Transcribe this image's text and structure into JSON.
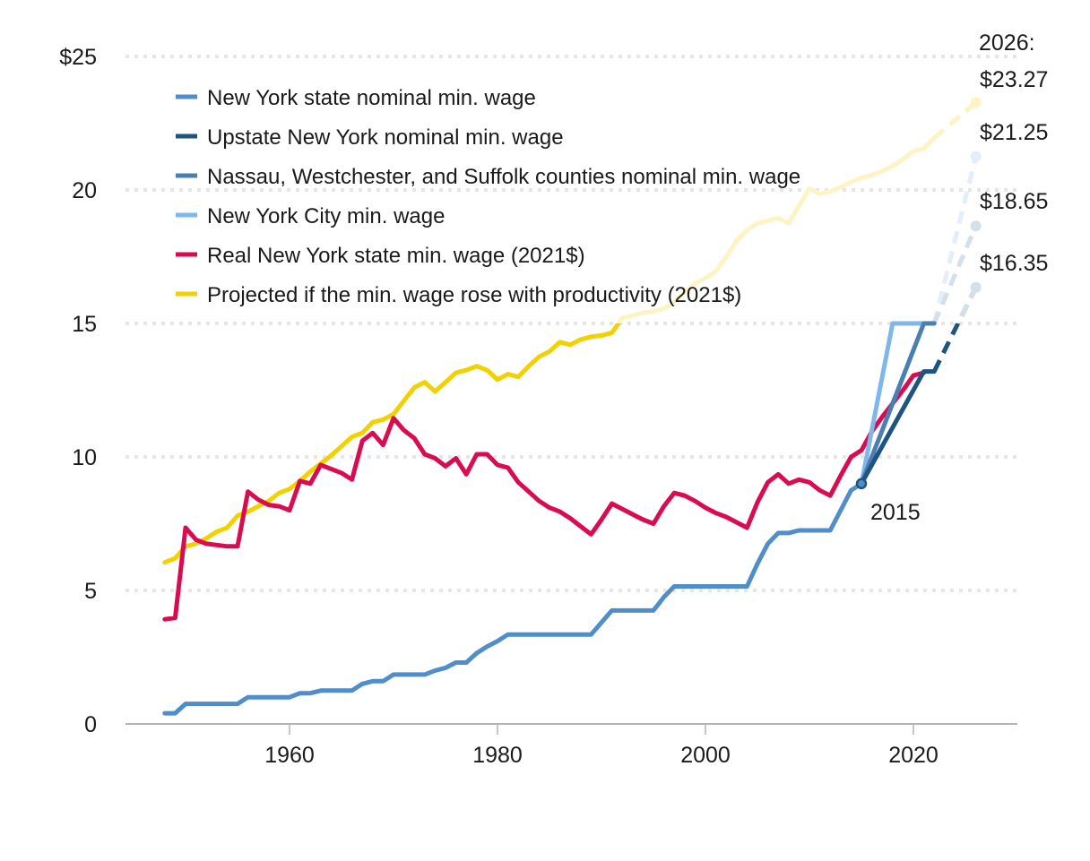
{
  "chart_data": {
    "type": "line",
    "title": "",
    "xlabel": "",
    "ylabel": "",
    "xlim": [
      1945,
      2030
    ],
    "ylim": [
      0,
      25
    ],
    "grid": true,
    "legend_position": "top-left",
    "x_ticks": [
      1960,
      1980,
      2000,
      2020
    ],
    "x_tick_labels": [
      "1960",
      "1980",
      "2000",
      "2020"
    ],
    "y_ticks": [
      0,
      5,
      10,
      15,
      20,
      25
    ],
    "y_tick_labels": [
      "0",
      "5",
      "10",
      "15",
      "20",
      "$25"
    ],
    "series": [
      {
        "name": "New York state nominal min. wage",
        "color": "#4f8ec9",
        "x": [
          1948,
          1949,
          1950,
          1951,
          1952,
          1953,
          1954,
          1955,
          1956,
          1957,
          1958,
          1959,
          1960,
          1961,
          1962,
          1963,
          1964,
          1965,
          1966,
          1967,
          1968,
          1969,
          1970,
          1971,
          1972,
          1973,
          1974,
          1975,
          1976,
          1977,
          1978,
          1979,
          1980,
          1981,
          1982,
          1983,
          1984,
          1985,
          1986,
          1987,
          1988,
          1989,
          1990,
          1991,
          1992,
          1993,
          1994,
          1995,
          1996,
          1997,
          1998,
          1999,
          2000,
          2001,
          2002,
          2003,
          2004,
          2005,
          2006,
          2007,
          2008,
          2009,
          2010,
          2011,
          2012,
          2013,
          2014,
          2015
        ],
        "values": [
          0.4,
          0.4,
          0.75,
          0.75,
          0.75,
          0.75,
          0.75,
          0.75,
          1.0,
          1.0,
          1.0,
          1.0,
          1.0,
          1.15,
          1.15,
          1.25,
          1.25,
          1.25,
          1.25,
          1.5,
          1.6,
          1.6,
          1.85,
          1.85,
          1.85,
          1.85,
          2.0,
          2.1,
          2.3,
          2.3,
          2.65,
          2.9,
          3.1,
          3.35,
          3.35,
          3.35,
          3.35,
          3.35,
          3.35,
          3.35,
          3.35,
          3.35,
          3.8,
          4.25,
          4.25,
          4.25,
          4.25,
          4.25,
          4.75,
          5.15,
          5.15,
          5.15,
          5.15,
          5.15,
          5.15,
          5.15,
          5.15,
          6.0,
          6.75,
          7.15,
          7.15,
          7.25,
          7.25,
          7.25,
          7.25,
          8.0,
          8.75,
          9.0
        ]
      },
      {
        "name": "Upstate New York nominal min. wage",
        "color": "#1e5480",
        "x": [
          2015,
          2021,
          2022
        ],
        "values": [
          9.0,
          13.2,
          13.2
        ],
        "projection": {
          "x": [
            2022,
            2026
          ],
          "values": [
            13.2,
            16.35
          ]
        }
      },
      {
        "name": "Nassau, Westchester, and Suffolk counties nominal min. wage",
        "color": "#4a7fb0",
        "x": [
          2015,
          2021,
          2022
        ],
        "values": [
          9.0,
          15.0,
          15.0
        ],
        "projection": {
          "x": [
            2022,
            2026
          ],
          "values": [
            15.0,
            18.65
          ]
        }
      },
      {
        "name": "New York City min. wage",
        "color": "#7fb7ea",
        "x": [
          2015,
          2018,
          2022
        ],
        "values": [
          9.0,
          15.0,
          15.0
        ],
        "projection": {
          "x": [
            2022,
            2026
          ],
          "values": [
            15.0,
            21.25
          ]
        }
      },
      {
        "name": "Real New York state min. wage (2021$)",
        "color": "#d90c52",
        "x": [
          1948,
          1949,
          1950,
          1951,
          1952,
          1953,
          1954,
          1955,
          1956,
          1957,
          1958,
          1959,
          1960,
          1961,
          1962,
          1963,
          1964,
          1965,
          1966,
          1967,
          1968,
          1969,
          1970,
          1971,
          1972,
          1973,
          1974,
          1975,
          1976,
          1977,
          1978,
          1979,
          1980,
          1981,
          1982,
          1983,
          1984,
          1985,
          1986,
          1987,
          1988,
          1989,
          1990,
          1991,
          1992,
          1993,
          1994,
          1995,
          1996,
          1997,
          1998,
          1999,
          2000,
          2001,
          2002,
          2003,
          2004,
          2005,
          2006,
          2007,
          2008,
          2009,
          2010,
          2011,
          2012,
          2013,
          2014,
          2015,
          2016,
          2017,
          2018,
          2019,
          2020,
          2021
        ],
        "values": [
          3.92,
          3.97,
          7.35,
          6.9,
          6.75,
          6.7,
          6.65,
          6.65,
          8.7,
          8.4,
          8.2,
          8.15,
          8.0,
          9.1,
          9.0,
          9.7,
          9.55,
          9.4,
          9.15,
          10.6,
          10.9,
          10.45,
          11.45,
          11.0,
          10.7,
          10.1,
          9.95,
          9.65,
          9.95,
          9.35,
          10.1,
          10.1,
          9.7,
          9.6,
          9.05,
          8.7,
          8.35,
          8.1,
          7.95,
          7.7,
          7.4,
          7.1,
          7.65,
          8.25,
          8.05,
          7.85,
          7.65,
          7.5,
          8.15,
          8.65,
          8.55,
          8.35,
          8.1,
          7.9,
          7.75,
          7.55,
          7.35,
          8.3,
          9.05,
          9.35,
          9.0,
          9.15,
          9.05,
          8.75,
          8.55,
          9.3,
          10.0,
          10.25,
          10.95,
          11.5,
          12.0,
          12.5,
          13.05,
          13.15
        ]
      },
      {
        "name": "Projected if the min. wage rose with productivity (2021$)",
        "color": "#f2d100",
        "x": [
          1948,
          1949,
          1950,
          1951,
          1952,
          1953,
          1954,
          1955,
          1956,
          1957,
          1958,
          1959,
          1960,
          1961,
          1962,
          1963,
          1964,
          1965,
          1966,
          1967,
          1968,
          1969,
          1970,
          1971,
          1972,
          1973,
          1974,
          1975,
          1976,
          1977,
          1978,
          1979,
          1980,
          1981,
          1982,
          1983,
          1984,
          1985,
          1986,
          1987,
          1988,
          1989,
          1990,
          1991,
          1992,
          1993,
          1994,
          1995,
          1996,
          1997,
          1998,
          1999,
          2000,
          2001,
          2002,
          2003,
          2004,
          2005,
          2006,
          2007,
          2008,
          2009,
          2010,
          2011,
          2012,
          2013,
          2014,
          2015,
          2016,
          2017,
          2018,
          2019,
          2020,
          2021,
          2022
        ],
        "values": [
          6.05,
          6.2,
          6.65,
          6.75,
          6.95,
          7.2,
          7.35,
          7.8,
          7.95,
          8.15,
          8.35,
          8.65,
          8.8,
          9.1,
          9.45,
          9.75,
          10.05,
          10.4,
          10.75,
          10.9,
          11.3,
          11.4,
          11.6,
          12.1,
          12.6,
          12.8,
          12.45,
          12.8,
          13.15,
          13.25,
          13.4,
          13.25,
          12.9,
          13.1,
          13.0,
          13.4,
          13.75,
          13.95,
          14.3,
          14.2,
          14.4,
          14.5,
          14.55,
          14.65,
          15.2,
          15.3,
          15.4,
          15.45,
          15.55,
          15.8,
          16.15,
          16.5,
          16.7,
          16.95,
          17.5,
          18.1,
          18.5,
          18.75,
          18.85,
          18.95,
          18.75,
          19.4,
          20.05,
          19.85,
          19.95,
          20.1,
          20.3,
          20.45,
          20.55,
          20.7,
          20.9,
          21.15,
          21.45,
          21.55,
          21.95
        ],
        "projection": {
          "x": [
            2022,
            2026
          ],
          "values": [
            21.95,
            23.27
          ]
        }
      }
    ],
    "annotations": [
      {
        "text": "2015",
        "x": 2015,
        "y": 9.0,
        "type": "point-label"
      },
      {
        "text": "2026:",
        "type": "header-label"
      },
      {
        "text": "$23.27",
        "x": 2026,
        "y": 23.27,
        "series": "Projected if the min. wage rose with productivity (2021$)"
      },
      {
        "text": "$21.25",
        "x": 2026,
        "y": 21.25,
        "series": "New York City min. wage"
      },
      {
        "text": "$18.65",
        "x": 2026,
        "y": 18.65,
        "series": "Nassau, Westchester, and Suffolk counties nominal min. wage"
      },
      {
        "text": "$16.35",
        "x": 2026,
        "y": 16.35,
        "series": "Upstate New York nominal min. wage"
      }
    ],
    "colors": {
      "grid": "#e6e6e6",
      "axis": "#b3b3b3",
      "text": "#1a1a1a"
    }
  }
}
